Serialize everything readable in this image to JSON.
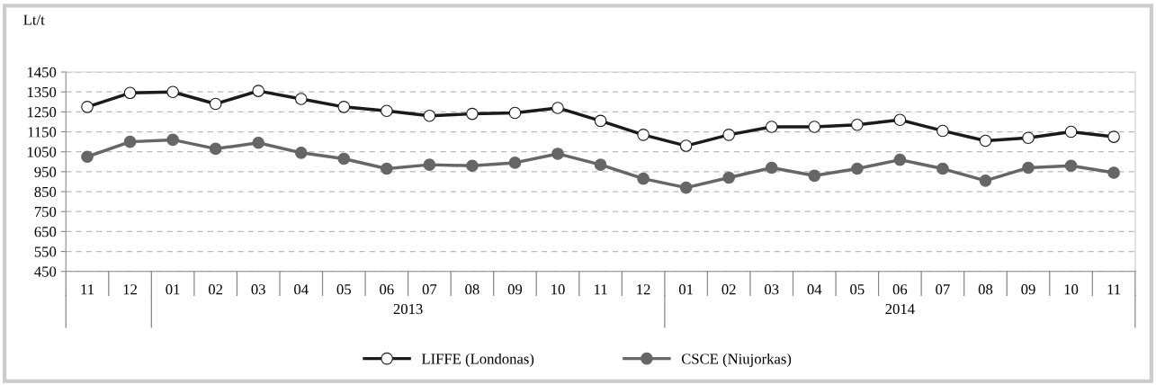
{
  "chart_data": {
    "type": "line",
    "ylabel": "Lt/t",
    "categories": [
      "11",
      "12",
      "01",
      "02",
      "03",
      "04",
      "05",
      "06",
      "07",
      "08",
      "09",
      "10",
      "11",
      "12",
      "01",
      "02",
      "03",
      "04",
      "05",
      "06",
      "07",
      "08",
      "09",
      "10",
      "11"
    ],
    "series": [
      {
        "name": "LIFFE (Londonas)",
        "color": "#1a1a1a",
        "values": [
          1275,
          1345,
          1350,
          1290,
          1355,
          1315,
          1275,
          1255,
          1230,
          1240,
          1245,
          1270,
          1205,
          1135,
          1080,
          1135,
          1175,
          1175,
          1185,
          1210,
          1155,
          1105,
          1120,
          1150,
          1125
        ]
      },
      {
        "name": "CSCE (Niujorkas)",
        "color": "#666666",
        "values": [
          1025,
          1100,
          1110,
          1065,
          1095,
          1045,
          1015,
          965,
          985,
          980,
          995,
          1040,
          985,
          915,
          870,
          920,
          970,
          930,
          965,
          1010,
          965,
          905,
          970,
          980,
          945
        ]
      }
    ],
    "annotations": [
      "2013",
      "2014"
    ],
    "ylim": [
      450,
      1450
    ],
    "yticks": [
      450,
      550,
      650,
      750,
      850,
      950,
      1050,
      1150,
      1250,
      1350,
      1450
    ],
    "grid": "y",
    "legend": "bottom",
    "marker": "circle",
    "line_style": "solid"
  }
}
